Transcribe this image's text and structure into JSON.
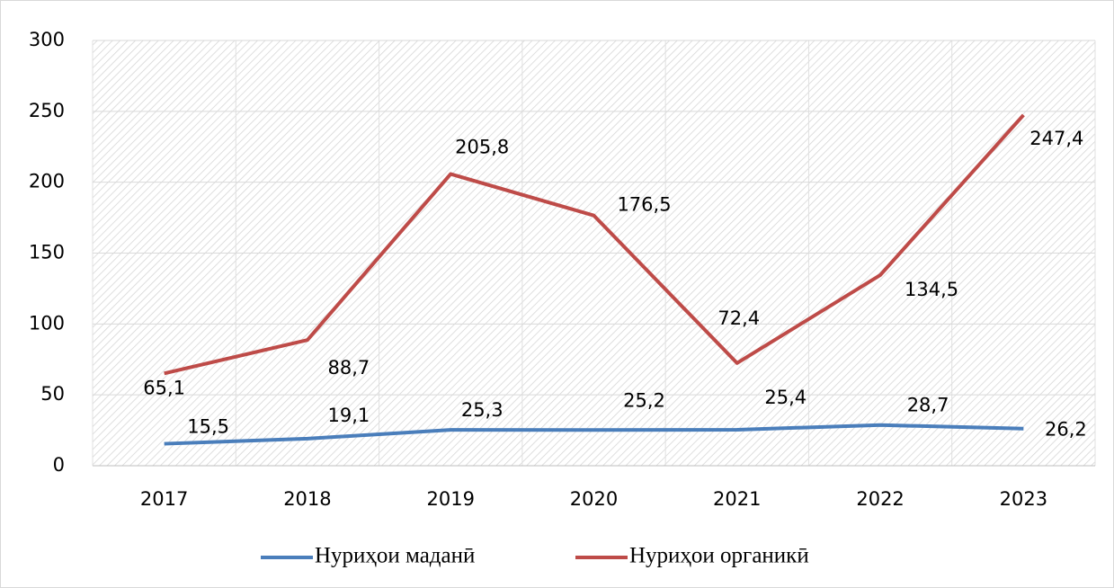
{
  "chart_data": {
    "type": "line",
    "categories": [
      "2017",
      "2018",
      "2019",
      "2020",
      "2021",
      "2022",
      "2023"
    ],
    "series": [
      {
        "name": "Нуриҳои маданӣ",
        "color": "#4a7ebb",
        "values": [
          15.5,
          19.1,
          25.3,
          25.2,
          25.4,
          28.7,
          26.2
        ],
        "value_labels": [
          "15,5",
          "19,1",
          "25,3",
          "25,2",
          "25,4",
          "28,7",
          "26,2"
        ]
      },
      {
        "name": "Нуриҳои органикӣ",
        "color": "#be4b48",
        "values": [
          65.1,
          88.7,
          205.8,
          176.5,
          72.4,
          134.5,
          247.4
        ],
        "value_labels": [
          "65,1",
          "88,7",
          "205,8",
          "176,5",
          "72,4",
          "134,5",
          "247,4"
        ]
      }
    ],
    "ylim": [
      0,
      300
    ],
    "yticks": [
      0,
      50,
      100,
      150,
      200,
      250,
      300
    ],
    "grid": true
  }
}
